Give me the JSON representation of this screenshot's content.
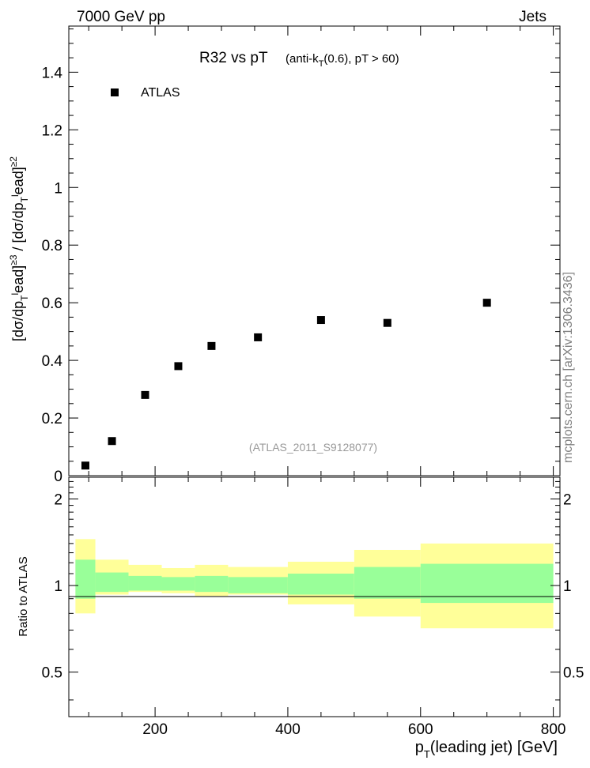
{
  "header": {
    "left": "7000 GeV pp",
    "right": "Jets"
  },
  "watermark": "mcplots.cern.ch [arXiv:1306.3436]",
  "colors": {
    "data_marker": "#000000",
    "band_inner": "#99ff99",
    "band_outer": "#ffff99",
    "reference_text": "#999999"
  },
  "chart_data": [
    {
      "type": "scatter",
      "title_main": "R32 vs pT",
      "title_sub_pre": "(anti-k",
      "title_sub_sub": "T",
      "title_sub_post": "(0.6), pT > 60)",
      "ylabel_text": "[dσ/dp_Tead]^≥3 / [dσ/dp_Tead]^≥2",
      "reference": "(ATLAS_2011_S9128077)",
      "legend": {
        "label": "ATLAS",
        "position": "top-left"
      },
      "xlim": [
        70,
        810
      ],
      "ylim": [
        0,
        1.56
      ],
      "ytick_labels": [
        "0",
        "0.2",
        "0.4",
        "0.6",
        "0.8",
        "1",
        "1.2",
        "1.4"
      ],
      "ytick_values": [
        0,
        0.2,
        0.4,
        0.6,
        0.8,
        1.0,
        1.2,
        1.4
      ],
      "series": [
        {
          "name": "ATLAS",
          "x": [
            95,
            135,
            185,
            235,
            285,
            355,
            450,
            550,
            700
          ],
          "y": [
            0.035,
            0.12,
            0.28,
            0.38,
            0.45,
            0.48,
            0.54,
            0.53,
            0.6
          ]
        }
      ]
    },
    {
      "type": "area",
      "ylabel": "Ratio to ATLAS",
      "xlabel_pre": "p",
      "xlabel_sub": "T",
      "xlabel_post": "(leading jet) [GeV]",
      "xlim": [
        70,
        810
      ],
      "ylim": [
        0.35,
        2.38
      ],
      "log_y": true,
      "xtick_labels": [
        "200",
        "400",
        "600",
        "800"
      ],
      "xtick_values": [
        200,
        400,
        600,
        800
      ],
      "ytick_labels": [
        "0.5",
        "1",
        "2"
      ],
      "ytick_values": [
        0.5,
        1,
        2
      ],
      "reference_line": 1,
      "bins": [
        {
          "x0": 80,
          "x1": 110,
          "inner_lo": 0.9,
          "inner_hi": 1.23,
          "outer_lo": 0.8,
          "outer_hi": 1.45
        },
        {
          "x0": 110,
          "x1": 160,
          "inner_lo": 0.95,
          "inner_hi": 1.11,
          "outer_lo": 0.93,
          "outer_hi": 1.23
        },
        {
          "x0": 160,
          "x1": 210,
          "inner_lo": 0.96,
          "inner_hi": 1.08,
          "outer_lo": 0.95,
          "outer_hi": 1.18
        },
        {
          "x0": 210,
          "x1": 260,
          "inner_lo": 0.96,
          "inner_hi": 1.07,
          "outer_lo": 0.94,
          "outer_hi": 1.15
        },
        {
          "x0": 260,
          "x1": 310,
          "inner_lo": 0.95,
          "inner_hi": 1.08,
          "outer_lo": 0.92,
          "outer_hi": 1.18
        },
        {
          "x0": 310,
          "x1": 400,
          "inner_lo": 0.94,
          "inner_hi": 1.07,
          "outer_lo": 0.93,
          "outer_hi": 1.16
        },
        {
          "x0": 400,
          "x1": 500,
          "inner_lo": 0.93,
          "inner_hi": 1.1,
          "outer_lo": 0.86,
          "outer_hi": 1.21
        },
        {
          "x0": 500,
          "x1": 600,
          "inner_lo": 0.9,
          "inner_hi": 1.16,
          "outer_lo": 0.78,
          "outer_hi": 1.33
        },
        {
          "x0": 600,
          "x1": 800,
          "inner_lo": 0.87,
          "inner_hi": 1.19,
          "outer_lo": 0.71,
          "outer_hi": 1.4
        }
      ]
    }
  ]
}
